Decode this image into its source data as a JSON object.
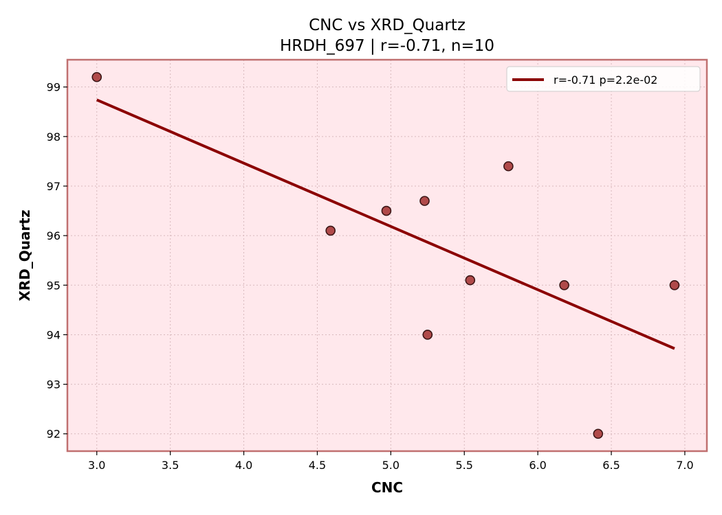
{
  "chart_data": {
    "type": "scatter",
    "title": "CNC vs XRD_Quartz",
    "subtitle": "HRDH_697 | r=-0.71, n=10",
    "xlabel": "CNC",
    "ylabel": "XRD_Quartz",
    "xlim": [
      2.8,
      7.15
    ],
    "ylim": [
      91.65,
      99.55
    ],
    "xticks": [
      3.0,
      3.5,
      4.0,
      4.5,
      5.0,
      5.5,
      6.0,
      6.5,
      7.0
    ],
    "xtick_labels": [
      "3.0",
      "3.5",
      "4.0",
      "4.5",
      "5.0",
      "5.5",
      "6.0",
      "6.5",
      "7.0"
    ],
    "yticks": [
      92,
      93,
      94,
      95,
      96,
      97,
      98,
      99
    ],
    "ytick_labels": [
      "92",
      "93",
      "94",
      "95",
      "96",
      "97",
      "98",
      "99"
    ],
    "grid": true,
    "legend_position": "top-right",
    "points": [
      {
        "x": 3.0,
        "y": 99.2
      },
      {
        "x": 4.59,
        "y": 96.1
      },
      {
        "x": 4.97,
        "y": 96.5
      },
      {
        "x": 5.23,
        "y": 96.7
      },
      {
        "x": 5.25,
        "y": 94.0
      },
      {
        "x": 5.54,
        "y": 95.1
      },
      {
        "x": 5.8,
        "y": 97.4
      },
      {
        "x": 6.18,
        "y": 95.0
      },
      {
        "x": 6.41,
        "y": 92.0
      },
      {
        "x": 6.93,
        "y": 95.0
      }
    ],
    "fit_line": {
      "label": "r=-0.71  p=2.2e-02",
      "x": [
        3.0,
        6.93
      ],
      "y": [
        98.74,
        93.72
      ]
    },
    "colors": {
      "background": "#ffe8ec",
      "frame": "#c07070",
      "point_fill": "#b04a4a",
      "point_edge": "#3a1515",
      "fit_line": "#8b0000",
      "grid": "#d8b8bc"
    }
  }
}
